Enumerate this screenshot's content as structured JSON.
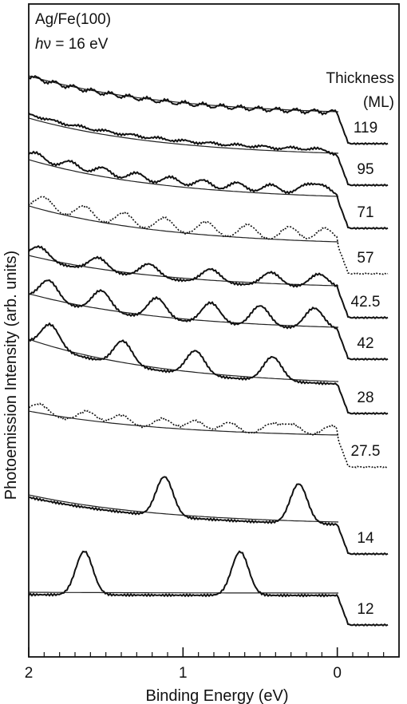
{
  "chart_data": {
    "type": "line",
    "annotation": {
      "line1": "Ag/Fe(100)",
      "line2_italic": "h",
      "line2_rest": "ν = 16 eV"
    },
    "legend_header": {
      "line1": "Thickness",
      "line2": "(ML)"
    },
    "xlabel": "Binding Energy (eV)",
    "ylabel": "Photoemission Intensity (arb. units)",
    "xlim": [
      2,
      -0.4
    ],
    "x_reversed": true,
    "x_ticks": [
      {
        "value": 2,
        "label": "2"
      },
      {
        "value": 1,
        "label": "1"
      },
      {
        "value": 0,
        "label": "0"
      }
    ],
    "grid": false,
    "series": [
      {
        "name": "119",
        "peaks": [],
        "amplitude": 0.18,
        "oscillation_period": 0.12
      },
      {
        "name": "95",
        "peaks": [
          2.0,
          1.84,
          1.67,
          1.5,
          1.33,
          1.16,
          0.99,
          0.82,
          0.65,
          0.48,
          0.3,
          0.13
        ],
        "amplitude": 0.32
      },
      {
        "name": "71",
        "peaks": [
          1.95,
          1.73,
          1.52,
          1.3,
          1.08,
          0.87,
          0.65,
          0.43,
          0.21,
          0.09
        ],
        "amplitude": 0.55
      },
      {
        "name": "57",
        "peaks": [
          1.9,
          1.64,
          1.38,
          1.12,
          0.85,
          0.58,
          0.31,
          0.08
        ],
        "amplitude": 0.75
      },
      {
        "name": "42.5",
        "peaks": [
          1.93,
          1.55,
          1.22,
          0.82,
          0.43,
          0.12
        ],
        "amplitude": 0.65
      },
      {
        "name": "42",
        "peaks": [
          1.87,
          1.53,
          1.17,
          0.82,
          0.5,
          0.15
        ],
        "amplitude": 1.0
      },
      {
        "name": "28",
        "peaks": [
          1.86,
          1.39,
          0.92,
          0.42
        ],
        "amplitude": 1.15
      },
      {
        "name": "27.5",
        "peaks": [
          1.93,
          1.62,
          1.4,
          1.13,
          0.92,
          0.7,
          0.43,
          0.29,
          0.04
        ],
        "amplitude": 0.55
      },
      {
        "name": "14",
        "peaks": [
          1.12,
          0.25
        ],
        "amplitude": 1.9
      },
      {
        "name": "12",
        "peaks": [
          1.64,
          0.63
        ],
        "amplitude": 2.1
      }
    ]
  }
}
